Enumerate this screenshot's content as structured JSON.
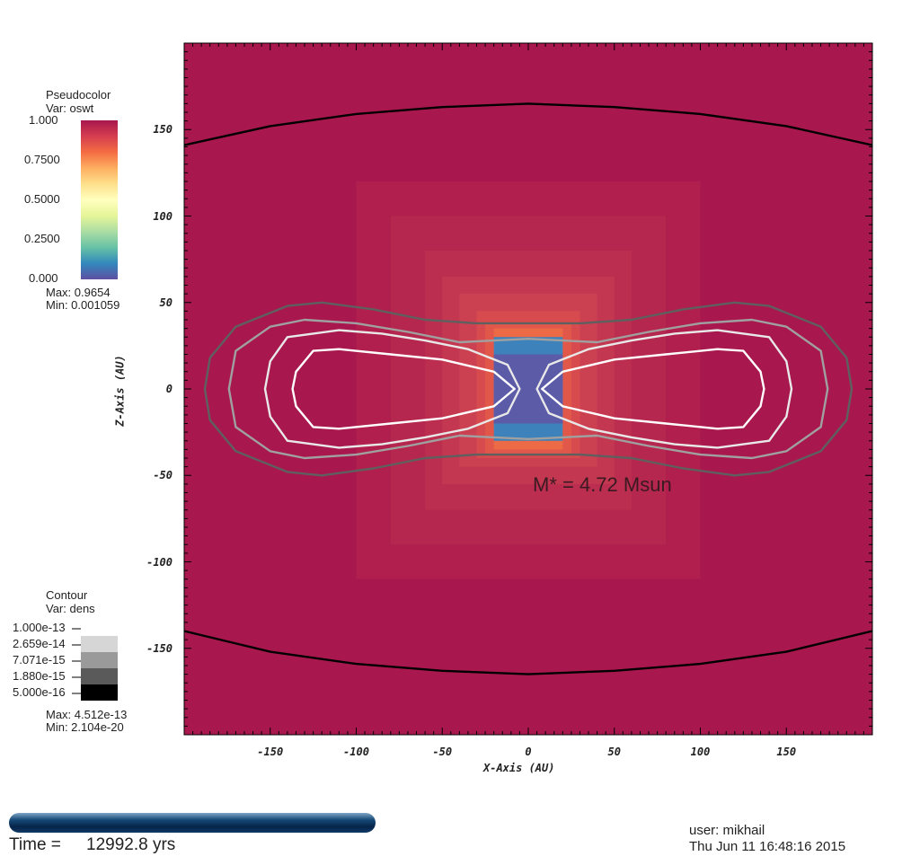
{
  "chart_data": {
    "type": "heatmap",
    "title": "",
    "xlabel": "X-Axis (AU)",
    "ylabel": "Z-Axis (AU)",
    "xlim": [
      -200,
      200
    ],
    "ylim": [
      -200,
      200
    ],
    "xticks": [
      -150,
      -100,
      -50,
      0,
      50,
      100,
      150
    ],
    "yticks": [
      150,
      100,
      50,
      0,
      -50,
      -100,
      -150
    ],
    "pseudocolor": {
      "title": "Pseudocolor",
      "var": "Var: oswt",
      "ticks": [
        "1.000",
        "0.7500",
        "0.5000",
        "0.2500",
        "0.000"
      ],
      "max": "Max:  0.9654",
      "min": "Min:  0.001059",
      "colors": [
        "#a8174e",
        "#d53e4f",
        "#f46d43",
        "#fdae61",
        "#fee08b",
        "#ffffbf",
        "#e6f598",
        "#abdda4",
        "#66c2a5",
        "#3288bd",
        "#5e4fa2"
      ]
    },
    "contour": {
      "title": "Contour",
      "var": "Var: dens",
      "levels": [
        "1.000e-13",
        "2.659e-14",
        "7.071e-15",
        "1.880e-15",
        "5.000e-16"
      ],
      "swatch_colors": [
        "#d6d6d6",
        "#9a9a9a",
        "#5a5a5a",
        "#000000"
      ],
      "max": "Max:  4.512e-13",
      "min": "Min:  2.104e-20"
    },
    "annotation": "M* = 4.72 Msun",
    "contours_au": [
      {
        "color": "#ffffff",
        "points": [
          [
            -135,
            10
          ],
          [
            -125,
            22
          ],
          [
            -110,
            23
          ],
          [
            -80,
            20
          ],
          [
            -50,
            17
          ],
          [
            -20,
            10
          ],
          [
            -8,
            0
          ],
          [
            -20,
            -10
          ],
          [
            -50,
            -17
          ],
          [
            -80,
            -20
          ],
          [
            -110,
            -23
          ],
          [
            -125,
            -22
          ],
          [
            -135,
            -10
          ],
          [
            -137,
            0
          ]
        ]
      },
      {
        "color": "#e8e8e8",
        "points": [
          [
            -150,
            16
          ],
          [
            -140,
            30
          ],
          [
            -110,
            34
          ],
          [
            -85,
            32
          ],
          [
            -60,
            28
          ],
          [
            -35,
            23
          ],
          [
            -12,
            14
          ],
          [
            -5,
            0
          ],
          [
            -12,
            -14
          ],
          [
            -35,
            -23
          ],
          [
            -60,
            -28
          ],
          [
            -85,
            -32
          ],
          [
            -110,
            -34
          ],
          [
            -140,
            -30
          ],
          [
            -150,
            -16
          ],
          [
            -153,
            0
          ]
        ]
      },
      {
        "color": "#a0a0a0",
        "points": [
          [
            -170,
            22
          ],
          [
            -150,
            36
          ],
          [
            -130,
            40
          ],
          [
            -100,
            38
          ],
          [
            -70,
            33
          ],
          [
            -40,
            27
          ],
          [
            -20,
            28
          ],
          [
            0,
            29
          ],
          [
            20,
            28
          ],
          [
            40,
            27
          ],
          [
            70,
            33
          ],
          [
            100,
            38
          ],
          [
            130,
            40
          ],
          [
            150,
            36
          ],
          [
            170,
            22
          ],
          [
            174,
            0
          ],
          [
            170,
            -22
          ],
          [
            150,
            -36
          ],
          [
            130,
            -40
          ],
          [
            100,
            -38
          ],
          [
            70,
            -33
          ],
          [
            40,
            -27
          ],
          [
            20,
            -28
          ],
          [
            0,
            -29
          ],
          [
            -20,
            -28
          ],
          [
            -40,
            -27
          ],
          [
            -70,
            -33
          ],
          [
            -100,
            -38
          ],
          [
            -130,
            -40
          ],
          [
            -150,
            -36
          ],
          [
            -170,
            -22
          ],
          [
            -174,
            0
          ]
        ]
      },
      {
        "color": "#5f5f5f",
        "points": [
          [
            -185,
            18
          ],
          [
            -170,
            36
          ],
          [
            -140,
            48
          ],
          [
            -120,
            50
          ],
          [
            -90,
            46
          ],
          [
            -60,
            40
          ],
          [
            -30,
            38
          ],
          [
            0,
            38
          ],
          [
            30,
            38
          ],
          [
            60,
            40
          ],
          [
            90,
            46
          ],
          [
            120,
            50
          ],
          [
            140,
            48
          ],
          [
            170,
            36
          ],
          [
            185,
            18
          ],
          [
            188,
            0
          ],
          [
            185,
            -18
          ],
          [
            170,
            -36
          ],
          [
            140,
            -48
          ],
          [
            120,
            -50
          ],
          [
            90,
            -46
          ],
          [
            60,
            -40
          ],
          [
            30,
            -38
          ],
          [
            0,
            -38
          ],
          [
            -30,
            -38
          ],
          [
            -60,
            -40
          ],
          [
            -90,
            -46
          ],
          [
            -120,
            -50
          ],
          [
            -140,
            -48
          ],
          [
            -170,
            -36
          ],
          [
            -185,
            -18
          ],
          [
            -188,
            0
          ]
        ]
      }
    ],
    "outer_arcs_au": [
      {
        "color": "#000000",
        "points": [
          [
            -200,
            141
          ],
          [
            -150,
            152
          ],
          [
            -100,
            159
          ],
          [
            -50,
            163
          ],
          [
            0,
            165
          ],
          [
            50,
            163
          ],
          [
            100,
            159
          ],
          [
            150,
            152
          ],
          [
            200,
            141
          ]
        ]
      },
      {
        "color": "#000000",
        "points": [
          [
            -200,
            -140
          ],
          [
            -150,
            -152
          ],
          [
            -100,
            -159
          ],
          [
            -50,
            -163
          ],
          [
            0,
            -165
          ],
          [
            50,
            -163
          ],
          [
            100,
            -159
          ],
          [
            150,
            -152
          ],
          [
            200,
            -140
          ]
        ]
      }
    ]
  },
  "footer": {
    "time_label": "Time =",
    "time_value": "12992.8 yrs",
    "user": "user: mikhail",
    "date": "Thu Jun 11 16:48:16 2015"
  }
}
